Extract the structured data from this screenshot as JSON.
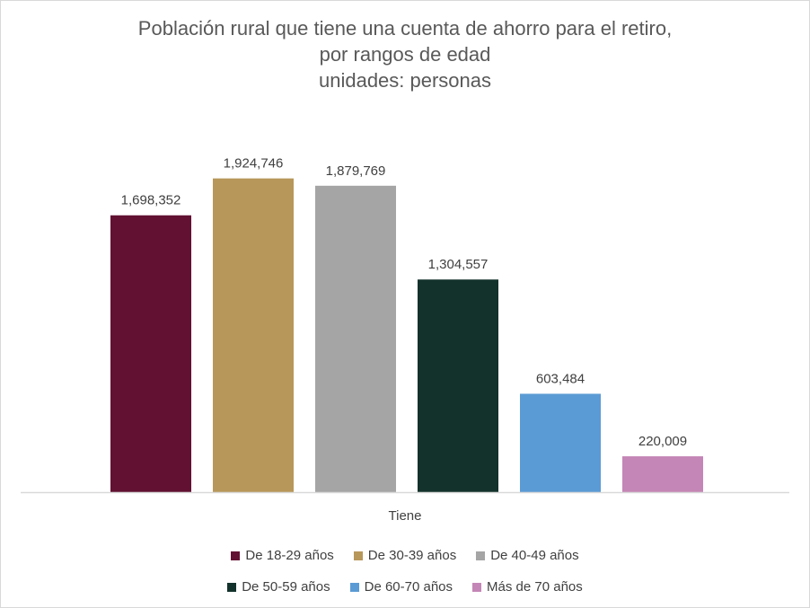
{
  "chart_data": {
    "type": "bar",
    "title_lines": [
      "Población rural que tiene una cuenta de ahorro para el retiro,",
      "por rangos de edad",
      "unidades: personas"
    ],
    "category": "Tiene",
    "ylim": [
      0,
      2000000
    ],
    "grid": false,
    "legend_position": "bottom",
    "series": [
      {
        "name": "De 18-29 años",
        "value": 1698352,
        "label": "1,698,352",
        "color": "#621132"
      },
      {
        "name": "De 30-39 años",
        "value": 1924746,
        "label": "1,924,746",
        "color": "#B8975A"
      },
      {
        "name": "De 40-49 años",
        "value": 1879769,
        "label": "1,879,769",
        "color": "#A5A5A5"
      },
      {
        "name": "De 50-59 años",
        "value": 1304557,
        "label": "1,304,557",
        "color": "#13322B"
      },
      {
        "name": "De 60-70 años",
        "value": 603484,
        "label": "603,484",
        "color": "#5B9BD5"
      },
      {
        "name": "Más de 70 años",
        "value": 220009,
        "label": "220,009",
        "color": "#C486B6"
      }
    ]
  }
}
